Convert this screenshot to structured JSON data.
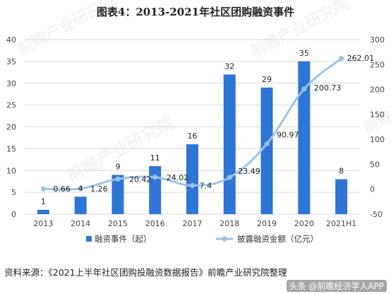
{
  "title": "图表4：2013-2021年社区团购融资事件",
  "source": "资料来源：《2021上半年社区团购投融资数据报告》前瞻产业研究院整理",
  "corner_watermark": "头条 @前瞻经济学人APP",
  "watermark_text": "前瞻产业研究院",
  "colors": {
    "bar": "#2e75d6",
    "line": "#9cc3e6",
    "grid": "#d9d9d9",
    "axis_text": "#444444"
  },
  "chart_data": {
    "type": "bar",
    "categories": [
      "2013",
      "2014",
      "2015",
      "2016",
      "2017",
      "2018",
      "2019",
      "2020",
      "2021H1"
    ],
    "series": [
      {
        "name": "融资事件（起）",
        "type": "bar",
        "axis": "left",
        "values": [
          1,
          4,
          9,
          11,
          16,
          32,
          29,
          35,
          8
        ]
      },
      {
        "name": "披露融资金额（亿元）",
        "type": "line",
        "axis": "right",
        "values": [
          0.66,
          1.26,
          20.42,
          24.02,
          7.4,
          23.49,
          90.97,
          200.73,
          262.01
        ]
      }
    ],
    "left_axis": {
      "min": 0,
      "max": 40,
      "ticks": [
        0,
        5,
        10,
        15,
        20,
        25,
        30,
        35,
        40
      ]
    },
    "right_axis": {
      "min": -50,
      "max": 300,
      "ticks": [
        -50,
        0,
        50,
        100,
        150,
        200,
        250,
        300
      ]
    },
    "grid": true,
    "legend_position": "bottom"
  }
}
